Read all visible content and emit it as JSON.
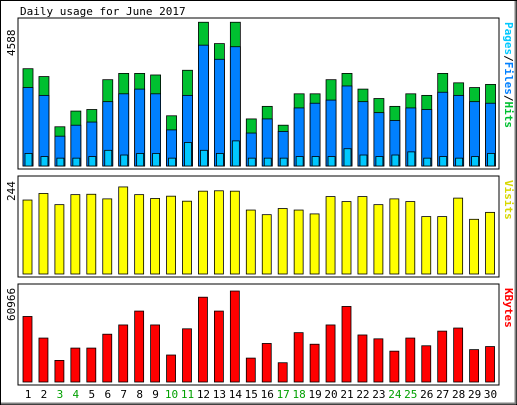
{
  "chart_data": [
    {
      "type": "bar",
      "title": "Daily usage for June 2017",
      "categories": [
        "1",
        "2",
        "3",
        "4",
        "5",
        "6",
        "7",
        "8",
        "9",
        "10",
        "11",
        "12",
        "13",
        "14",
        "15",
        "16",
        "17",
        "18",
        "19",
        "20",
        "21",
        "22",
        "23",
        "24",
        "25",
        "26",
        "27",
        "28",
        "29",
        "30"
      ],
      "weekend_days": [
        "3",
        "4",
        "10",
        "11",
        "17",
        "18",
        "24",
        "25"
      ],
      "ymax_label": "4588",
      "ylim": [
        0,
        4588
      ],
      "side_label_parts": [
        "Pages",
        "Files",
        "Hits"
      ],
      "side_label_separator": "/",
      "series": [
        {
          "name": "Hits",
          "color": "#00c030",
          "values": [
            3100,
            2850,
            1250,
            1750,
            1800,
            2750,
            2950,
            2950,
            2900,
            1600,
            3050,
            4580,
            3900,
            4580,
            1500,
            1900,
            1300,
            2300,
            2300,
            2750,
            2950,
            2450,
            2150,
            1900,
            2300,
            2250,
            2950,
            2650,
            2500,
            2600
          ]
        },
        {
          "name": "Files",
          "color": "#0080ff",
          "values": [
            2500,
            2250,
            950,
            1300,
            1400,
            2050,
            2300,
            2450,
            2300,
            1150,
            2250,
            3850,
            3400,
            3800,
            1050,
            1500,
            1100,
            1850,
            2000,
            2100,
            2550,
            2050,
            1700,
            1450,
            1850,
            1800,
            2350,
            2250,
            2050,
            2000
          ]
        },
        {
          "name": "Pages",
          "color": "#00c8ff",
          "values": [
            400,
            300,
            250,
            250,
            300,
            500,
            350,
            400,
            400,
            250,
            750,
            500,
            400,
            800,
            250,
            250,
            250,
            300,
            300,
            300,
            550,
            350,
            300,
            350,
            450,
            250,
            300,
            250,
            300,
            400
          ]
        }
      ]
    },
    {
      "type": "bar",
      "categories": [
        "1",
        "2",
        "3",
        "4",
        "5",
        "6",
        "7",
        "8",
        "9",
        "10",
        "11",
        "12",
        "13",
        "14",
        "15",
        "16",
        "17",
        "18",
        "19",
        "20",
        "21",
        "22",
        "23",
        "24",
        "25",
        "26",
        "27",
        "28",
        "29",
        "30"
      ],
      "ymax_label": "244",
      "ylim": [
        0,
        244
      ],
      "series": [
        {
          "name": "Visits",
          "color": "#ffff00",
          "values": [
            192,
            209,
            180,
            206,
            207,
            195,
            226,
            206,
            196,
            202,
            189,
            215,
            216,
            215,
            166,
            154,
            170,
            166,
            156,
            201,
            188,
            201,
            180,
            195,
            188,
            149,
            149,
            197,
            142,
            160
          ]
        }
      ]
    },
    {
      "type": "bar",
      "categories": [
        "1",
        "2",
        "3",
        "4",
        "5",
        "6",
        "7",
        "8",
        "9",
        "10",
        "11",
        "12",
        "13",
        "14",
        "15",
        "16",
        "17",
        "18",
        "19",
        "20",
        "21",
        "22",
        "23",
        "24",
        "25",
        "26",
        "27",
        "28",
        "29",
        "30"
      ],
      "ymax_label": "60966",
      "ylim": [
        0,
        60966
      ],
      "series": [
        {
          "name": "KBytes",
          "color": "#ff0000",
          "values": [
            42500,
            28500,
            14000,
            22000,
            22000,
            31000,
            37000,
            46000,
            37000,
            17500,
            34500,
            55000,
            46000,
            59000,
            15500,
            25000,
            12500,
            32000,
            24500,
            37000,
            49000,
            30500,
            28000,
            20000,
            28500,
            23500,
            33000,
            35000,
            21000,
            23000
          ]
        }
      ]
    }
  ]
}
